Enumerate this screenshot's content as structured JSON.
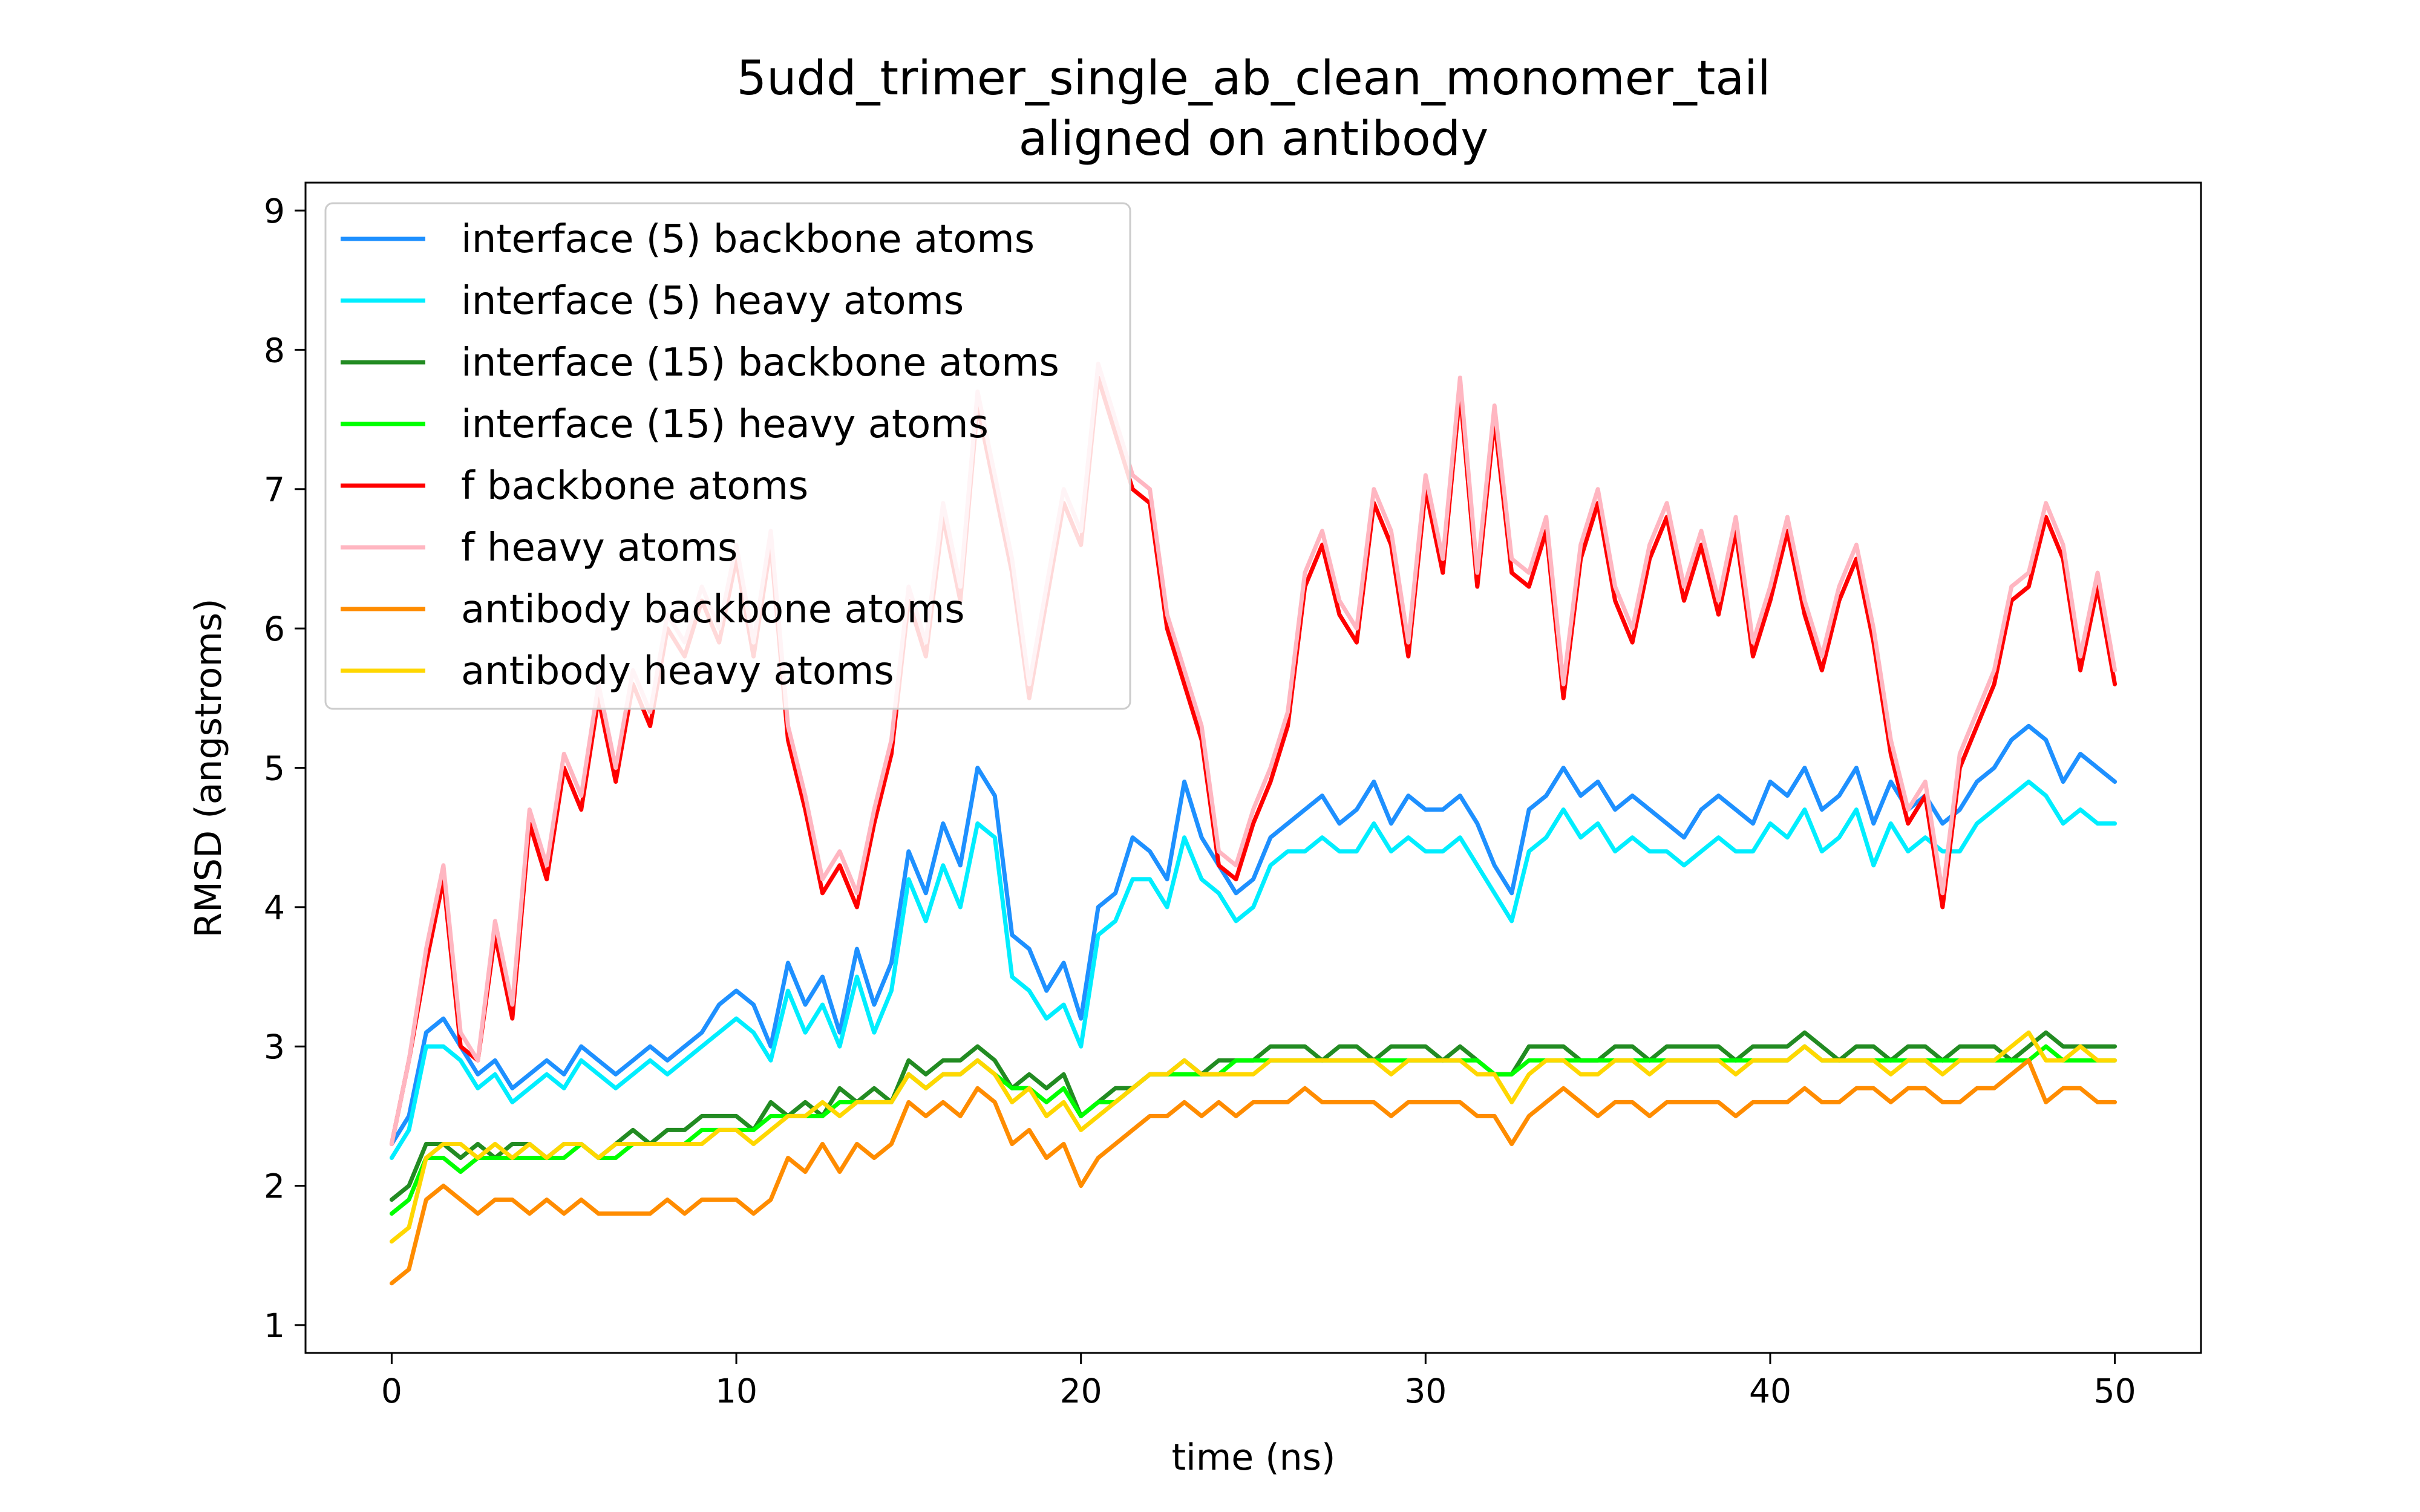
{
  "chart_data": {
    "type": "line",
    "title": "5udd_trimer_single_ab_clean_monomer_tail",
    "subtitle": "aligned on antibody",
    "xlabel": "time (ns)",
    "ylabel": "RMSD (angstroms)",
    "xlim": [
      -2.5,
      52.5
    ],
    "ylim": [
      0.8,
      9.2
    ],
    "xticks": [
      0,
      10,
      20,
      30,
      40,
      50
    ],
    "yticks": [
      1,
      2,
      3,
      4,
      5,
      6,
      7,
      8,
      9
    ],
    "grid": false,
    "legend_position": "top-left",
    "x": [
      0,
      0.5,
      1,
      1.5,
      2,
      2.5,
      3,
      3.5,
      4,
      4.5,
      5,
      5.5,
      6,
      6.5,
      7,
      7.5,
      8,
      8.5,
      9,
      9.5,
      10,
      10.5,
      11,
      11.5,
      12,
      12.5,
      13,
      13.5,
      14,
      14.5,
      15,
      15.5,
      16,
      16.5,
      17,
      17.5,
      18,
      18.5,
      19,
      19.5,
      20,
      20.5,
      21,
      21.5,
      22,
      22.5,
      23,
      23.5,
      24,
      24.5,
      25,
      25.5,
      26,
      26.5,
      27,
      27.5,
      28,
      28.5,
      29,
      29.5,
      30,
      30.5,
      31,
      31.5,
      32,
      32.5,
      33,
      33.5,
      34,
      34.5,
      35,
      35.5,
      36,
      36.5,
      37,
      37.5,
      38,
      38.5,
      39,
      39.5,
      40,
      40.5,
      41,
      41.5,
      42,
      42.5,
      43,
      43.5,
      44,
      44.5,
      45,
      45.5,
      46,
      46.5,
      47,
      47.5,
      48,
      48.5,
      49,
      49.5,
      50
    ],
    "series": [
      {
        "name": "interface (5) backbone atoms",
        "color": "#1e90ff",
        "values": [
          2.3,
          2.5,
          3.1,
          3.2,
          3.0,
          2.8,
          2.9,
          2.7,
          2.8,
          2.9,
          2.8,
          3.0,
          2.9,
          2.8,
          2.9,
          3.0,
          2.9,
          3.0,
          3.1,
          3.3,
          3.4,
          3.3,
          3.0,
          3.6,
          3.3,
          3.5,
          3.1,
          3.7,
          3.3,
          3.6,
          4.4,
          4.1,
          4.6,
          4.3,
          5.0,
          4.8,
          3.8,
          3.7,
          3.4,
          3.6,
          3.2,
          4.0,
          4.1,
          4.5,
          4.4,
          4.2,
          4.9,
          4.5,
          4.3,
          4.1,
          4.2,
          4.5,
          4.6,
          4.7,
          4.8,
          4.6,
          4.7,
          4.9,
          4.6,
          4.8,
          4.7,
          4.7,
          4.8,
          4.6,
          4.3,
          4.1,
          4.7,
          4.8,
          5.0,
          4.8,
          4.9,
          4.7,
          4.8,
          4.7,
          4.6,
          4.5,
          4.7,
          4.8,
          4.7,
          4.6,
          4.9,
          4.8,
          5.0,
          4.7,
          4.8,
          5.0,
          4.6,
          4.9,
          4.7,
          4.8,
          4.6,
          4.7,
          4.9,
          5.0,
          5.2,
          5.3,
          5.2,
          4.9,
          5.1,
          5.0,
          4.9
        ]
      },
      {
        "name": "interface (5) heavy atoms",
        "color": "#00eeff",
        "values": [
          2.2,
          2.4,
          3.0,
          3.0,
          2.9,
          2.7,
          2.8,
          2.6,
          2.7,
          2.8,
          2.7,
          2.9,
          2.8,
          2.7,
          2.8,
          2.9,
          2.8,
          2.9,
          3.0,
          3.1,
          3.2,
          3.1,
          2.9,
          3.4,
          3.1,
          3.3,
          3.0,
          3.5,
          3.1,
          3.4,
          4.2,
          3.9,
          4.3,
          4.0,
          4.6,
          4.5,
          3.5,
          3.4,
          3.2,
          3.3,
          3.0,
          3.8,
          3.9,
          4.2,
          4.2,
          4.0,
          4.5,
          4.2,
          4.1,
          3.9,
          4.0,
          4.3,
          4.4,
          4.4,
          4.5,
          4.4,
          4.4,
          4.6,
          4.4,
          4.5,
          4.4,
          4.4,
          4.5,
          4.3,
          4.1,
          3.9,
          4.4,
          4.5,
          4.7,
          4.5,
          4.6,
          4.4,
          4.5,
          4.4,
          4.4,
          4.3,
          4.4,
          4.5,
          4.4,
          4.4,
          4.6,
          4.5,
          4.7,
          4.4,
          4.5,
          4.7,
          4.3,
          4.6,
          4.4,
          4.5,
          4.4,
          4.4,
          4.6,
          4.7,
          4.8,
          4.9,
          4.8,
          4.6,
          4.7,
          4.6,
          4.6
        ]
      },
      {
        "name": "interface (15) backbone atoms",
        "color": "#228b22",
        "values": [
          1.9,
          2.0,
          2.3,
          2.3,
          2.2,
          2.3,
          2.2,
          2.3,
          2.3,
          2.2,
          2.3,
          2.3,
          2.2,
          2.3,
          2.4,
          2.3,
          2.4,
          2.4,
          2.5,
          2.5,
          2.5,
          2.4,
          2.6,
          2.5,
          2.6,
          2.5,
          2.7,
          2.6,
          2.7,
          2.6,
          2.9,
          2.8,
          2.9,
          2.9,
          3.0,
          2.9,
          2.7,
          2.8,
          2.7,
          2.8,
          2.5,
          2.6,
          2.7,
          2.7,
          2.8,
          2.8,
          2.9,
          2.8,
          2.9,
          2.9,
          2.9,
          3.0,
          3.0,
          3.0,
          2.9,
          3.0,
          3.0,
          2.9,
          3.0,
          3.0,
          3.0,
          2.9,
          3.0,
          2.9,
          2.8,
          2.8,
          3.0,
          3.0,
          3.0,
          2.9,
          2.9,
          3.0,
          3.0,
          2.9,
          3.0,
          3.0,
          3.0,
          3.0,
          2.9,
          3.0,
          3.0,
          3.0,
          3.1,
          3.0,
          2.9,
          3.0,
          3.0,
          2.9,
          3.0,
          3.0,
          2.9,
          3.0,
          3.0,
          3.0,
          2.9,
          3.0,
          3.1,
          3.0,
          3.0,
          3.0,
          3.0
        ]
      },
      {
        "name": "interface (15) heavy atoms",
        "color": "#00ff00",
        "values": [
          1.8,
          1.9,
          2.2,
          2.2,
          2.1,
          2.2,
          2.2,
          2.2,
          2.2,
          2.2,
          2.2,
          2.3,
          2.2,
          2.2,
          2.3,
          2.3,
          2.3,
          2.3,
          2.4,
          2.4,
          2.4,
          2.4,
          2.5,
          2.5,
          2.5,
          2.5,
          2.6,
          2.6,
          2.6,
          2.6,
          2.8,
          2.7,
          2.8,
          2.8,
          2.9,
          2.8,
          2.7,
          2.7,
          2.6,
          2.7,
          2.5,
          2.6,
          2.6,
          2.7,
          2.8,
          2.8,
          2.8,
          2.8,
          2.8,
          2.9,
          2.9,
          2.9,
          2.9,
          2.9,
          2.9,
          2.9,
          2.9,
          2.9,
          2.9,
          2.9,
          2.9,
          2.9,
          2.9,
          2.9,
          2.8,
          2.8,
          2.9,
          2.9,
          2.9,
          2.9,
          2.9,
          2.9,
          2.9,
          2.9,
          2.9,
          2.9,
          2.9,
          2.9,
          2.9,
          2.9,
          2.9,
          2.9,
          3.0,
          2.9,
          2.9,
          2.9,
          2.9,
          2.9,
          2.9,
          2.9,
          2.9,
          2.9,
          2.9,
          2.9,
          2.9,
          2.9,
          3.0,
          2.9,
          2.9,
          2.9,
          2.9
        ]
      },
      {
        "name": "f backbone atoms",
        "color": "#ff0000",
        "values": [
          2.3,
          2.9,
          3.6,
          4.2,
          3.0,
          2.9,
          3.8,
          3.2,
          4.6,
          4.2,
          5.0,
          4.7,
          5.5,
          4.9,
          5.6,
          5.3,
          6.0,
          5.8,
          6.2,
          5.9,
          6.5,
          5.8,
          6.6,
          5.2,
          4.7,
          4.1,
          4.3,
          4.0,
          4.6,
          5.1,
          6.2,
          5.8,
          6.8,
          6.2,
          7.6,
          7.0,
          6.4,
          5.5,
          6.2,
          6.9,
          6.6,
          7.8,
          7.4,
          7.0,
          6.9,
          6.0,
          5.6,
          5.2,
          4.3,
          4.2,
          4.6,
          4.9,
          5.3,
          6.3,
          6.6,
          6.1,
          5.9,
          6.9,
          6.6,
          5.8,
          7.0,
          6.4,
          7.7,
          6.3,
          7.5,
          6.4,
          6.3,
          6.7,
          5.5,
          6.5,
          6.9,
          6.2,
          5.9,
          6.5,
          6.8,
          6.2,
          6.6,
          6.1,
          6.7,
          5.8,
          6.2,
          6.7,
          6.1,
          5.7,
          6.2,
          6.5,
          5.9,
          5.1,
          4.6,
          4.8,
          4.0,
          5.0,
          5.3,
          5.6,
          6.2,
          6.3,
          6.8,
          6.5,
          5.7,
          6.3,
          5.6
        ]
      },
      {
        "name": "f heavy atoms",
        "color": "#ffb6c1",
        "values": [
          2.3,
          2.9,
          3.7,
          4.3,
          3.1,
          2.9,
          3.9,
          3.3,
          4.7,
          4.3,
          5.1,
          4.8,
          5.6,
          5.0,
          5.7,
          5.4,
          6.1,
          5.9,
          6.3,
          6.0,
          6.6,
          5.9,
          6.7,
          5.3,
          4.8,
          4.2,
          4.4,
          4.1,
          4.7,
          5.2,
          6.3,
          5.9,
          6.9,
          6.3,
          7.7,
          7.1,
          6.5,
          5.6,
          6.3,
          7.0,
          6.7,
          7.9,
          7.5,
          7.1,
          7.0,
          6.1,
          5.7,
          5.3,
          4.4,
          4.3,
          4.7,
          5.0,
          5.4,
          6.4,
          6.7,
          6.2,
          6.0,
          7.0,
          6.7,
          5.9,
          7.1,
          6.5,
          7.8,
          6.4,
          7.6,
          6.5,
          6.4,
          6.8,
          5.6,
          6.6,
          7.0,
          6.3,
          6.0,
          6.6,
          6.9,
          6.3,
          6.7,
          6.2,
          6.8,
          5.9,
          6.3,
          6.8,
          6.2,
          5.8,
          6.3,
          6.6,
          6.0,
          5.2,
          4.7,
          4.9,
          4.1,
          5.1,
          5.4,
          5.7,
          6.3,
          6.4,
          6.9,
          6.6,
          5.8,
          6.4,
          5.7
        ]
      },
      {
        "name": "antibody backbone atoms",
        "color": "#ff8c00",
        "values": [
          1.3,
          1.4,
          1.9,
          2.0,
          1.9,
          1.8,
          1.9,
          1.9,
          1.8,
          1.9,
          1.8,
          1.9,
          1.8,
          1.8,
          1.8,
          1.8,
          1.9,
          1.8,
          1.9,
          1.9,
          1.9,
          1.8,
          1.9,
          2.2,
          2.1,
          2.3,
          2.1,
          2.3,
          2.2,
          2.3,
          2.6,
          2.5,
          2.6,
          2.5,
          2.7,
          2.6,
          2.3,
          2.4,
          2.2,
          2.3,
          2.0,
          2.2,
          2.3,
          2.4,
          2.5,
          2.5,
          2.6,
          2.5,
          2.6,
          2.5,
          2.6,
          2.6,
          2.6,
          2.7,
          2.6,
          2.6,
          2.6,
          2.6,
          2.5,
          2.6,
          2.6,
          2.6,
          2.6,
          2.5,
          2.5,
          2.3,
          2.5,
          2.6,
          2.7,
          2.6,
          2.5,
          2.6,
          2.6,
          2.5,
          2.6,
          2.6,
          2.6,
          2.6,
          2.5,
          2.6,
          2.6,
          2.6,
          2.7,
          2.6,
          2.6,
          2.7,
          2.7,
          2.6,
          2.7,
          2.7,
          2.6,
          2.6,
          2.7,
          2.7,
          2.8,
          2.9,
          2.6,
          2.7,
          2.7,
          2.6,
          2.6
        ]
      },
      {
        "name": "antibody heavy atoms",
        "color": "#ffd700",
        "values": [
          1.6,
          1.7,
          2.2,
          2.3,
          2.3,
          2.2,
          2.3,
          2.2,
          2.3,
          2.2,
          2.3,
          2.3,
          2.2,
          2.3,
          2.3,
          2.3,
          2.3,
          2.3,
          2.3,
          2.4,
          2.4,
          2.3,
          2.4,
          2.5,
          2.5,
          2.6,
          2.5,
          2.6,
          2.6,
          2.6,
          2.8,
          2.7,
          2.8,
          2.8,
          2.9,
          2.8,
          2.6,
          2.7,
          2.5,
          2.6,
          2.4,
          2.5,
          2.6,
          2.7,
          2.8,
          2.8,
          2.9,
          2.8,
          2.8,
          2.8,
          2.8,
          2.9,
          2.9,
          2.9,
          2.9,
          2.9,
          2.9,
          2.9,
          2.8,
          2.9,
          2.9,
          2.9,
          2.9,
          2.8,
          2.8,
          2.6,
          2.8,
          2.9,
          2.9,
          2.8,
          2.8,
          2.9,
          2.9,
          2.8,
          2.9,
          2.9,
          2.9,
          2.9,
          2.8,
          2.9,
          2.9,
          2.9,
          3.0,
          2.9,
          2.9,
          2.9,
          2.9,
          2.8,
          2.9,
          2.9,
          2.8,
          2.9,
          2.9,
          2.9,
          3.0,
          3.1,
          2.9,
          2.9,
          3.0,
          2.9,
          2.9
        ]
      }
    ]
  }
}
